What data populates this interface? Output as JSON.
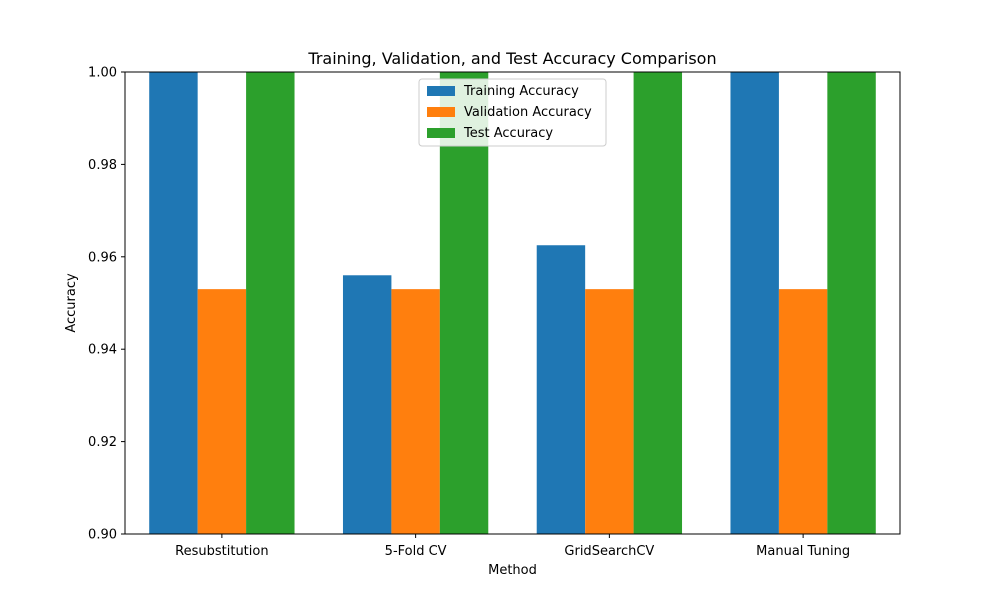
{
  "chart_data": {
    "type": "bar",
    "title": "Training, Validation, and Test Accuracy Comparison",
    "xlabel": "Method",
    "ylabel": "Accuracy",
    "categories": [
      "Resubstitution",
      "5-Fold CV",
      "GridSearchCV",
      "Manual Tuning"
    ],
    "ylim": [
      0.9,
      1.0
    ],
    "yticks": [
      "0.90",
      "0.92",
      "0.94",
      "0.96",
      "0.98",
      "1.00"
    ],
    "series": [
      {
        "name": "Training Accuracy",
        "color": "#1f77b4",
        "values": [
          1.0,
          0.956,
          0.9625,
          1.0
        ]
      },
      {
        "name": "Validation Accuracy",
        "color": "#ff7f0e",
        "values": [
          0.953,
          0.953,
          0.953,
          0.953
        ]
      },
      {
        "name": "Test Accuracy",
        "color": "#2ca02c",
        "values": [
          1.0,
          1.0,
          1.0,
          1.0
        ]
      }
    ],
    "legend": {
      "position": "upper center"
    },
    "grid": false
  }
}
